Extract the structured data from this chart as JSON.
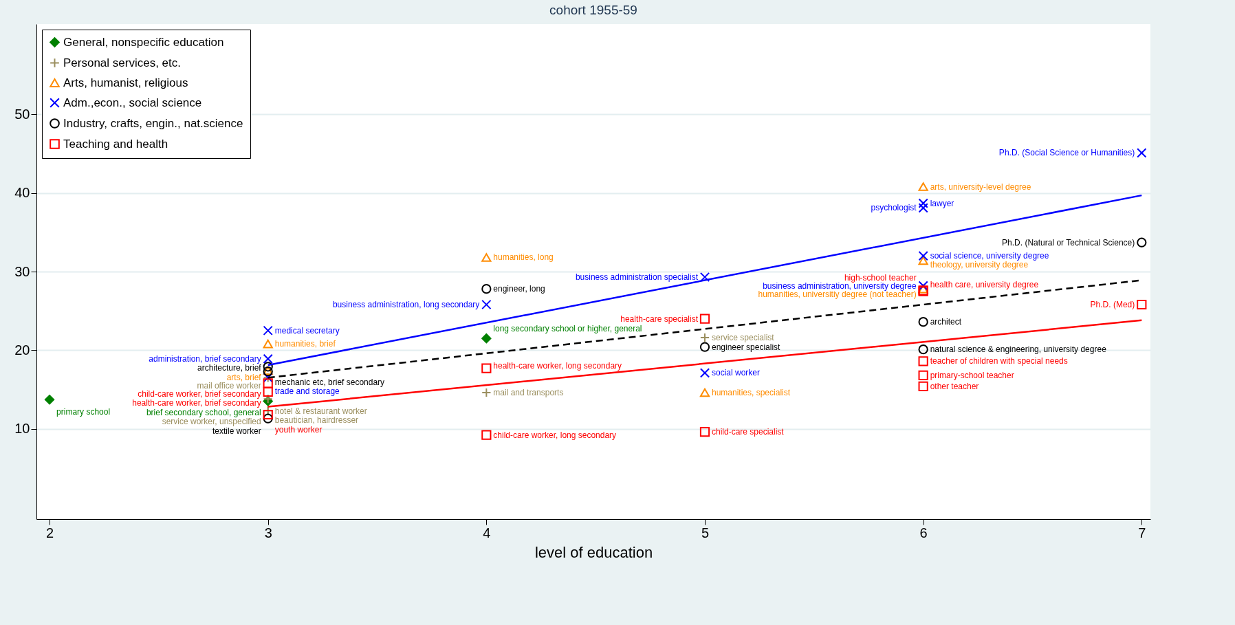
{
  "chart_data": {
    "type": "scatter",
    "title": "cohort 1955-59",
    "xlabel": "level of education",
    "xlim": [
      1.94,
      7.04
    ],
    "xticks": [
      2,
      3,
      4,
      5,
      6,
      7
    ],
    "ylim": [
      -1.5,
      61.5
    ],
    "yticks": [
      10,
      20,
      30,
      40,
      50
    ],
    "grid": "y",
    "legend": "top left",
    "series": [
      {
        "name": "General, nonspecific education",
        "color": "#008000",
        "marker": "diamond",
        "x": [
          2,
          3,
          4
        ],
        "values": [
          13.7,
          13.5,
          21.5
        ],
        "value_labels": [
          "primary school",
          "brief secondary school, general",
          "long secondary school or higher, general"
        ]
      },
      {
        "name": "Personal services, etc.",
        "color": "#9b8f5f",
        "marker": "cross",
        "x": [
          3,
          3,
          3,
          3,
          4,
          5
        ],
        "values": [
          16.5,
          13.8,
          12.3,
          12.3,
          14.6,
          21.6
        ],
        "value_labels": [
          "mail office worker",
          "hotel & restaurant worker",
          "beautician, hairdresser",
          "service worker, unspecified",
          "mail and transports",
          "service specialist"
        ]
      },
      {
        "name": "Arts, humanist, religious",
        "color": "#ff8c00",
        "marker": "triangle",
        "x": [
          3,
          3,
          4,
          5,
          6,
          6,
          6
        ],
        "values": [
          20.8,
          17.4,
          31.8,
          14.6,
          40.8,
          31.4,
          27.8
        ],
        "value_labels": [
          "humanities, brief",
          "arts, brief",
          "humanities, long",
          "humanities, specialist",
          "arts, university-level degree",
          "theology, university degree",
          "humanities, universitiy degree (not teacher)"
        ]
      },
      {
        "name": "Adm.,econ., social science",
        "color": "#0000ff",
        "marker": "x",
        "x": [
          3,
          3,
          3,
          4,
          5,
          5,
          6,
          6,
          6,
          6,
          7
        ],
        "values": [
          22.5,
          18.9,
          16.5,
          25.8,
          29.3,
          17.1,
          38.7,
          38.1,
          32.0,
          28.2,
          45.1
        ],
        "value_labels": [
          "medical secretary",
          "administration, brief secondary",
          "trade and storage",
          "business administration, long secondary",
          "business administration specialist",
          "social worker",
          "lawyer",
          "psychologist",
          "social science, university degree",
          "business administration, university degree",
          "Ph.D. (Social Science or Humanities)"
        ]
      },
      {
        "name": "Industry, crafts, engin., nat.science",
        "color": "#000000",
        "marker": "circle",
        "x": [
          3,
          3,
          3,
          4,
          5,
          6,
          6,
          7
        ],
        "values": [
          17.9,
          17.3,
          11.3,
          27.8,
          20.4,
          23.6,
          20.1,
          33.7
        ],
        "value_labels": [
          "architecture, brief",
          "mechanic etc, brief secondary",
          "textile worker",
          "engineer, long",
          "engineer specialist",
          "architect",
          "natural science & engineering, university degree",
          "Ph.D. (Natural or Technical Science)"
        ]
      },
      {
        "name": "Teaching and health",
        "color": "#ff0000",
        "marker": "square",
        "x": [
          3,
          3,
          3,
          4,
          4,
          5,
          5,
          6,
          6,
          6,
          6,
          6,
          7
        ],
        "values": [
          15.8,
          14.7,
          11.8,
          17.7,
          9.2,
          24.0,
          9.6,
          27.6,
          27.5,
          18.6,
          16.8,
          15.4,
          25.8
        ],
        "value_labels": [
          "child-care worker, brief secondary",
          "health-care worker, brief secondary",
          "youth worker",
          "health-care worker, long secondary",
          "child-care worker, long secondary",
          "health-care specialist",
          "child-care specialist",
          "health care, university degree",
          "high-school teacher",
          "teacher of children with special needs",
          "primary-school teacher",
          "other teacher",
          "Ph.D. (Med)"
        ]
      },
      {
        "type": "line",
        "color": "#0000ff",
        "line_style": "solid",
        "x": [
          3,
          7
        ],
        "values": [
          18.1,
          39.7
        ]
      },
      {
        "type": "line",
        "color": "#000000",
        "line_style": "dashed",
        "x": [
          3,
          7
        ],
        "values": [
          16.5,
          28.9
        ]
      },
      {
        "type": "line",
        "color": "#ff0000",
        "line_style": "solid",
        "x": [
          3,
          7
        ],
        "values": [
          12.8,
          23.8
        ]
      }
    ]
  }
}
